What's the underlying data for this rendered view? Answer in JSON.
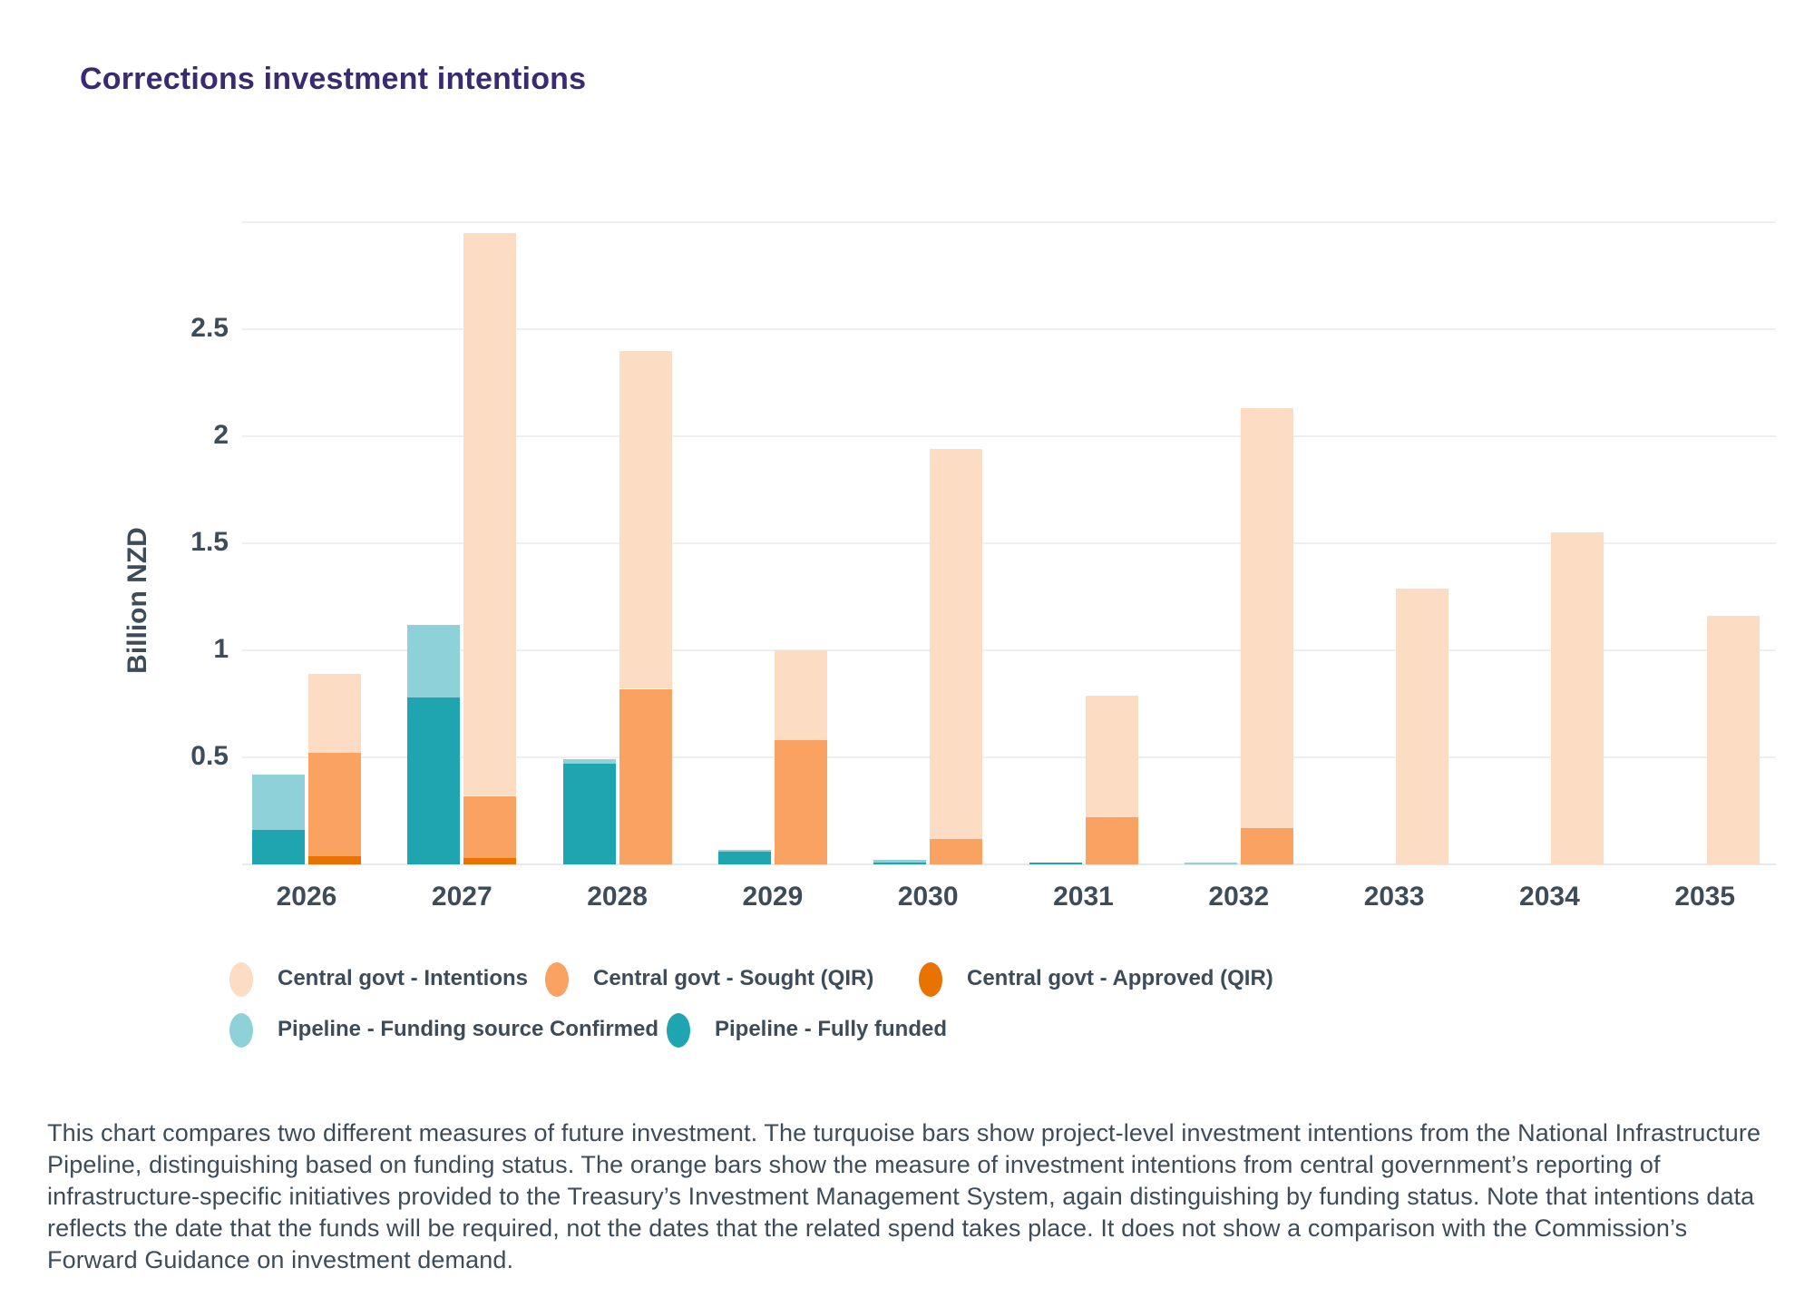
{
  "page": {
    "title": "Corrections investment intentions"
  },
  "chart_data": {
    "type": "bar",
    "title": "Corrections investment intentions",
    "xlabel": "",
    "ylabel": "Billion NZD",
    "categories": [
      "2026",
      "2027",
      "2028",
      "2029",
      "2030",
      "2031",
      "2032",
      "2033",
      "2034",
      "2035"
    ],
    "ylim": [
      0,
      3
    ],
    "grid": true,
    "grid_step": 0.5,
    "yticks": [
      "0.5",
      "1",
      "1.5",
      "2",
      "2.5"
    ],
    "legend_position": "bottom",
    "bar_groups": [
      "pipeline",
      "central_govt"
    ],
    "stacking": "each year has two side-by-side stacked bars; series values are stacked segment heights in Billion NZD, listed bottom-to-top per group",
    "series": [
      {
        "name": "Pipeline - Fully funded",
        "group": "pipeline",
        "color": "#1FA5AF",
        "values": [
          0.16,
          0.78,
          0.47,
          0.06,
          0.01,
          0.01,
          0,
          0,
          0,
          0
        ]
      },
      {
        "name": "Pipeline - Funding source Confirmed",
        "group": "pipeline",
        "color": "#8FD1D8",
        "values": [
          0.26,
          0.34,
          0.02,
          0.01,
          0.01,
          0,
          0.01,
          0,
          0,
          0
        ]
      },
      {
        "name": "Central govt - Approved (QIR)",
        "group": "central_govt",
        "color": "#E97300",
        "values": [
          0.04,
          0.03,
          0,
          0,
          0,
          0,
          0,
          0,
          0,
          0
        ]
      },
      {
        "name": "Central govt - Sought (QIR)",
        "group": "central_govt",
        "color": "#F9A262",
        "values": [
          0.48,
          0.29,
          0.82,
          0.58,
          0.12,
          0.22,
          0.17,
          0,
          0,
          0
        ]
      },
      {
        "name": "Central govt - Intentions",
        "group": "central_govt",
        "color": "#FCDCC2",
        "values": [
          0.37,
          2.63,
          1.58,
          0.42,
          1.82,
          0.57,
          1.96,
          1.29,
          1.55,
          1.16
        ]
      }
    ],
    "cumulative_readout": {
      "central_govt_intentions_total": [
        0.89,
        2.95,
        2.4,
        1.0,
        1.94,
        0.79,
        2.13,
        1.29,
        1.55,
        1.16
      ],
      "central_govt_sought_cumulative": [
        0.52,
        0.32,
        0.82,
        0.58,
        0.12,
        0.22,
        0.17,
        0,
        0,
        0
      ],
      "central_govt_approved_cumulative": [
        0.04,
        0.03,
        0,
        0,
        0,
        0,
        0,
        0,
        0,
        0
      ],
      "pipeline_total": [
        0.42,
        1.12,
        0.49,
        0.07,
        0.02,
        0.01,
        0.01,
        0,
        0,
        0
      ]
    }
  },
  "legend": {
    "rows": [
      [
        {
          "label": "Central govt - Intentions",
          "color": "#FCDCC2"
        },
        {
          "label": "Central govt - Sought (QIR)",
          "color": "#F9A262"
        },
        {
          "label": "Central govt - Approved (QIR)",
          "color": "#E97300"
        }
      ],
      [
        {
          "label": "Pipeline - Funding source Confirmed",
          "color": "#8FD1D8"
        },
        {
          "label": "Pipeline - Fully funded",
          "color": "#1FA5AF"
        }
      ]
    ]
  },
  "footnote": "This chart compares two different measures of future investment. The turquoise bars show project-level investment intentions from the National Infrastructure Pipeline, distinguishing based on funding status. The orange bars show the measure of investment intentions from central government’s reporting of infrastructure-specific initiatives provided to the Treasury’s Investment Management System, again distinguishing by funding status. Note that intentions data reflects the date that the funds will be required, not the dates that the related spend takes place. It does not show a comparison with the Commission’s Forward Guidance on investment demand.",
  "colors": {
    "title": "#3A2B70",
    "axis_text": "#3E4C59",
    "gridline": "#EFEFF2",
    "baseline": "#E7E9EC",
    "background": "#FFFFFF"
  }
}
